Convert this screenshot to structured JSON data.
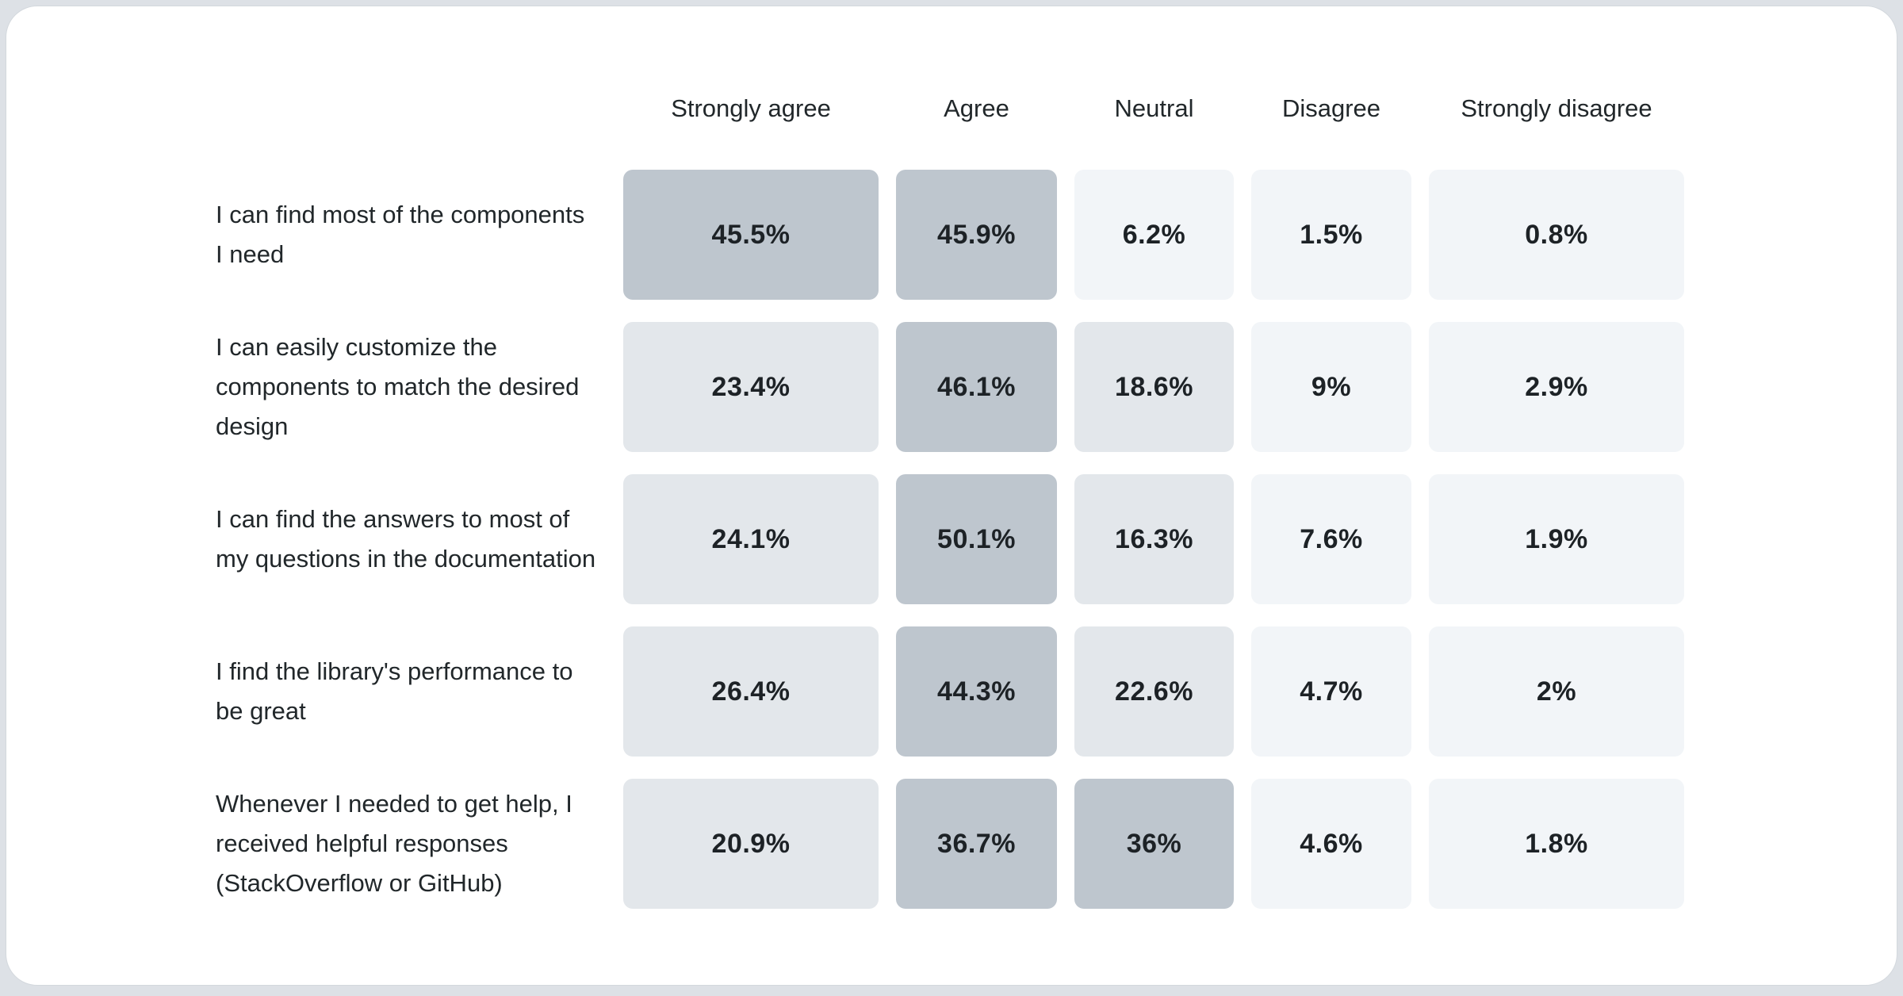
{
  "page": {
    "background_color": "#dde1e6",
    "card_background_color": "#ffffff"
  },
  "chart_data": {
    "type": "heatmap",
    "title": "",
    "legend_position": "none",
    "grid": false,
    "value_format": "percent",
    "columns": [
      "Strongly agree",
      "Agree",
      "Neutral",
      "Disagree",
      "Strongly disagree"
    ],
    "rows": [
      {
        "label": "I can find most of the components I need",
        "values": [
          45.5,
          45.9,
          6.2,
          1.5,
          0.8
        ],
        "display": [
          "45.5%",
          "45.9%",
          "6.2%",
          "1.5%",
          "0.8%"
        ]
      },
      {
        "label": "I can easily customize the components to match the desired design",
        "values": [
          23.4,
          46.1,
          18.6,
          9,
          2.9
        ],
        "display": [
          "23.4%",
          "46.1%",
          "18.6%",
          "9%",
          "2.9%"
        ]
      },
      {
        "label": "I can find the answers to most of my questions in the documentation",
        "values": [
          24.1,
          50.1,
          16.3,
          7.6,
          1.9
        ],
        "display": [
          "24.1%",
          "50.1%",
          "16.3%",
          "7.6%",
          "1.9%"
        ]
      },
      {
        "label": "I find the library's performance to be great",
        "values": [
          26.4,
          44.3,
          22.6,
          4.7,
          2
        ],
        "display": [
          "26.4%",
          "44.3%",
          "22.6%",
          "4.7%",
          "2%"
        ]
      },
      {
        "label": "Whenever I needed to get help, I received helpful responses (StackOverflow or GitHub)",
        "values": [
          20.9,
          36.7,
          36,
          4.6,
          1.8
        ],
        "display": [
          "20.9%",
          "36.7%",
          "36%",
          "4.6%",
          "1.8%"
        ]
      }
    ],
    "color_scale": {
      "bins": [
        {
          "max": 15,
          "color": "#f2f5f8"
        },
        {
          "max": 30,
          "color": "#e3e7eb"
        },
        {
          "max": 100,
          "color": "#bec6ce"
        }
      ],
      "text_color": "#21272a"
    }
  }
}
